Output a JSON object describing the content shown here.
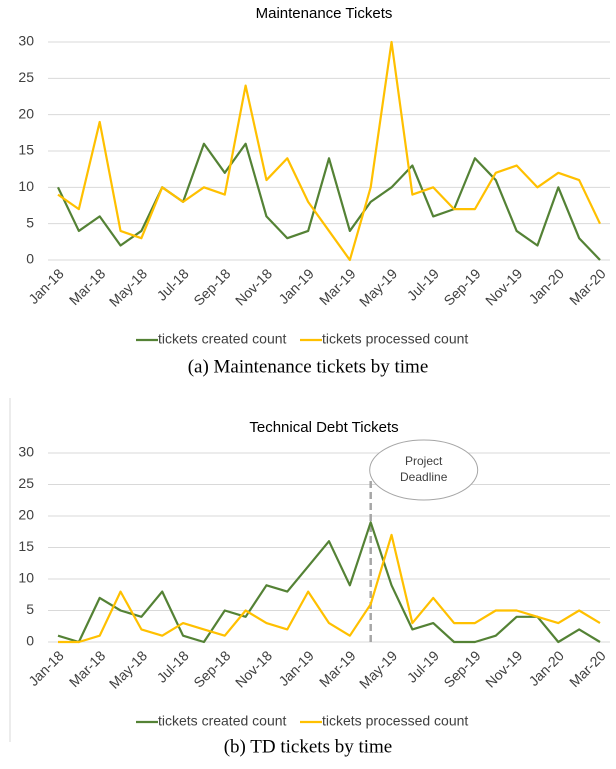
{
  "chart_data": [
    {
      "type": "line",
      "title": "Maintenance Tickets",
      "caption": "(a)  Maintenance tickets by time",
      "categories": [
        "Jan-18",
        null,
        "Mar-18",
        null,
        "May-18",
        null,
        "Jul-18",
        null,
        "Sep-18",
        null,
        "Nov-18",
        null,
        "Jan-19",
        null,
        "Mar-19",
        null,
        "May-19",
        null,
        "Jul-19",
        null,
        "Sep-19",
        null,
        "Nov-19",
        null,
        "Jan-20",
        null,
        "Mar-20"
      ],
      "series": [
        {
          "name": "tickets created count",
          "color": "#548235",
          "values": [
            10,
            4,
            6,
            2,
            4,
            10,
            8,
            16,
            12,
            16,
            6,
            3,
            4,
            14,
            4,
            8,
            10,
            13,
            6,
            7,
            14,
            11,
            4,
            2,
            10,
            3,
            0
          ]
        },
        {
          "name": "tickets processed count",
          "color": "#ffc000",
          "values": [
            9,
            7,
            19,
            4,
            3,
            10,
            8,
            10,
            9,
            24,
            11,
            14,
            8,
            4,
            0,
            10,
            30,
            9,
            10,
            7,
            7,
            12,
            13,
            10,
            12,
            11,
            5
          ]
        }
      ],
      "ylim": [
        0,
        30
      ],
      "yticks": [
        0,
        5,
        10,
        15,
        20,
        25,
        30
      ],
      "grid": true,
      "legend": "bottom"
    },
    {
      "type": "line",
      "title": "Technical Debt Tickets",
      "caption": "(b)  TD tickets by time",
      "categories": [
        "Jan-18",
        null,
        "Mar-18",
        null,
        "May-18",
        null,
        "Jul-18",
        null,
        "Sep-18",
        null,
        "Nov-18",
        null,
        "Jan-19",
        null,
        "Mar-19",
        null,
        "May-19",
        null,
        "Jul-19",
        null,
        "Sep-19",
        null,
        "Nov-19",
        null,
        "Jan-20",
        null,
        "Mar-20"
      ],
      "series": [
        {
          "name": "tickets created count",
          "color": "#548235",
          "values": [
            1,
            0,
            7,
            5,
            4,
            8,
            1,
            0,
            5,
            4,
            9,
            8,
            12,
            16,
            9,
            19,
            9,
            2,
            3,
            0,
            0,
            1,
            4,
            4,
            0,
            2,
            0
          ]
        },
        {
          "name": "tickets processed count",
          "color": "#ffc000",
          "values": [
            0,
            0,
            1,
            8,
            2,
            1,
            3,
            2,
            1,
            5,
            3,
            2,
            8,
            3,
            1,
            6,
            17,
            3,
            7,
            3,
            3,
            5,
            5,
            4,
            3,
            5,
            3
          ]
        }
      ],
      "ylim": [
        0,
        30
      ],
      "yticks": [
        0,
        5,
        10,
        15,
        20,
        25,
        30
      ],
      "grid": true,
      "legend": "bottom",
      "annotation": {
        "text": "Project Deadline",
        "category_index": 15
      }
    }
  ]
}
